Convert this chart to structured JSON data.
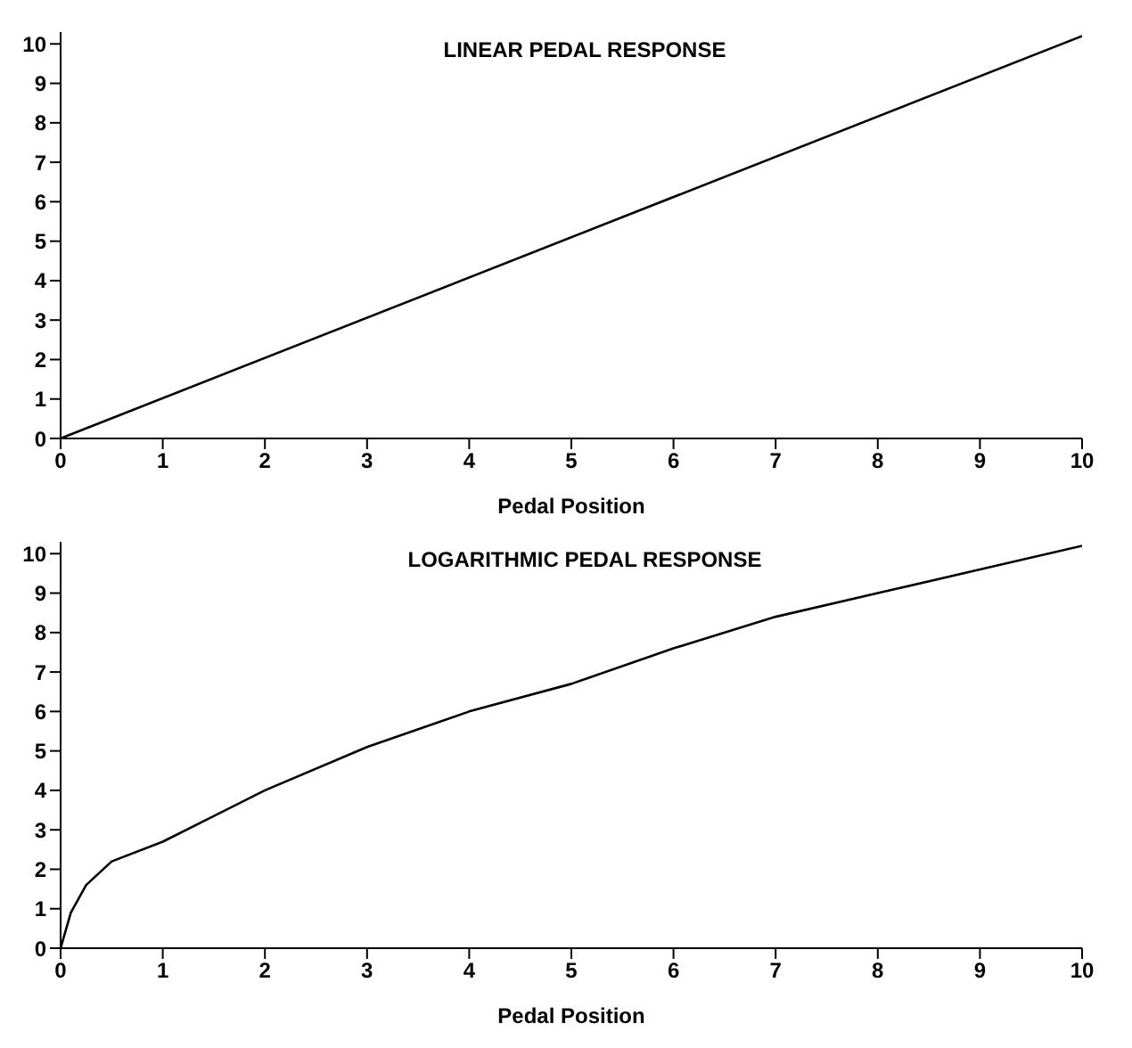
{
  "chart_data": [
    {
      "type": "line",
      "title": "LINEAR PEDAL RESPONSE",
      "xlabel": "Pedal Position",
      "x": [
        0,
        10
      ],
      "series": [
        {
          "color": "#000000",
          "values": [
            0,
            10.2
          ]
        }
      ],
      "xlim": [
        0,
        10
      ],
      "ylim": [
        0,
        10.3
      ],
      "xticks": [
        0,
        1,
        2,
        3,
        4,
        5,
        6,
        7,
        8,
        9,
        10
      ],
      "yticks": [
        0,
        1,
        2,
        3,
        4,
        5,
        6,
        7,
        8,
        9,
        10
      ],
      "grid": false,
      "legend": false,
      "marker": "none",
      "line_style": "solid"
    },
    {
      "type": "line",
      "title": "LOGARITHMIC PEDAL RESPONSE",
      "xlabel": "Pedal Position",
      "x": [
        0,
        0.1,
        0.25,
        0.5,
        1,
        2,
        3,
        4,
        5,
        6,
        7,
        8,
        9,
        10
      ],
      "series": [
        {
          "color": "#000000",
          "values": [
            0,
            0.9,
            1.6,
            2.2,
            2.7,
            4,
            5.1,
            6,
            6.7,
            7.6,
            8.4,
            9,
            9.6,
            10.2
          ]
        }
      ],
      "xlim": [
        0,
        10
      ],
      "ylim": [
        0,
        10.3
      ],
      "xticks": [
        0,
        1,
        2,
        3,
        4,
        5,
        6,
        7,
        8,
        9,
        10
      ],
      "yticks": [
        0,
        1,
        2,
        3,
        4,
        5,
        6,
        7,
        8,
        9,
        10
      ],
      "grid": false,
      "legend": false,
      "marker": "none",
      "line_style": "solid"
    }
  ]
}
